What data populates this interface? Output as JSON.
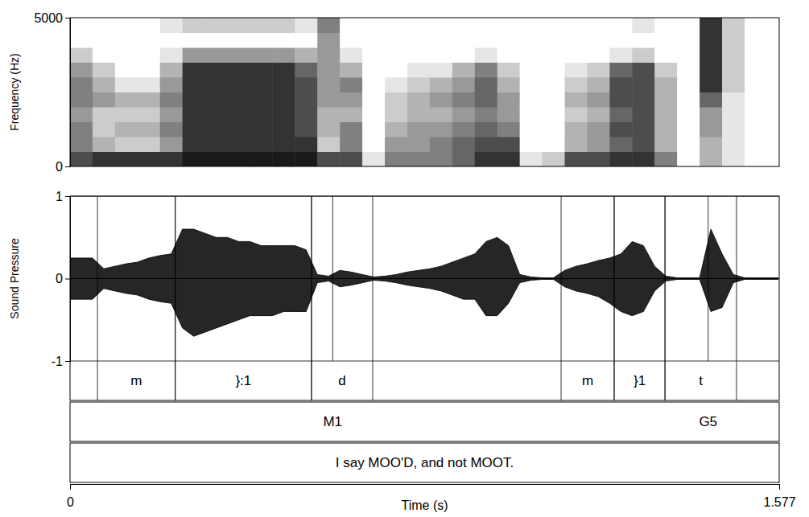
{
  "chart_data": [
    {
      "type": "heatmap",
      "ylabel": "Frequency (Hz)",
      "color": "#000000",
      "xlim": [
        0,
        1.577
      ],
      "ylim": [
        0,
        5000
      ],
      "yticks": [
        0,
        5000
      ],
      "tick_labels": "y",
      "x": [
        0,
        0.05,
        0.1,
        0.15,
        0.2,
        0.25,
        0.3,
        0.35,
        0.4,
        0.45,
        0.5,
        0.55,
        0.6,
        0.65,
        0.7,
        0.75,
        0.8,
        0.85,
        0.9,
        0.95,
        1.0,
        1.05,
        1.1,
        1.15,
        1.2,
        1.25,
        1.3,
        1.35,
        1.4,
        1.45,
        1.5,
        1.55
      ],
      "y": [
        0,
        500,
        1000,
        1500,
        2000,
        2500,
        3000,
        3500,
        4000,
        4500
      ],
      "cells": [
        [
          0.7,
          0.5,
          0.5,
          0.4,
          0.5,
          0.5,
          0.4,
          0.2,
          0,
          0
        ],
        [
          0.8,
          0.3,
          0.2,
          0.2,
          0.4,
          0.3,
          0.2,
          0,
          0,
          0
        ],
        [
          0.8,
          0.2,
          0.3,
          0.2,
          0.3,
          0.1,
          0,
          0,
          0,
          0
        ],
        [
          0.8,
          0.2,
          0.3,
          0.2,
          0.3,
          0.1,
          0,
          0,
          0,
          0
        ],
        [
          0.8,
          0.4,
          0.5,
          0.4,
          0.5,
          0.4,
          0.3,
          0.1,
          0,
          0.1
        ],
        [
          0.9,
          0.8,
          0.8,
          0.8,
          0.8,
          0.8,
          0.8,
          0.4,
          0,
          0.2
        ],
        [
          0.9,
          0.8,
          0.8,
          0.8,
          0.8,
          0.8,
          0.8,
          0.4,
          0,
          0.2
        ],
        [
          0.9,
          0.8,
          0.8,
          0.8,
          0.8,
          0.8,
          0.8,
          0.4,
          0,
          0.2
        ],
        [
          0.9,
          0.8,
          0.8,
          0.8,
          0.8,
          0.8,
          0.8,
          0.4,
          0,
          0.2
        ],
        [
          0.9,
          0.8,
          0.8,
          0.8,
          0.8,
          0.8,
          0.8,
          0.4,
          0,
          0.2
        ],
        [
          0.9,
          0.8,
          0.7,
          0.7,
          0.7,
          0.7,
          0.6,
          0.3,
          0,
          0.1
        ],
        [
          0.7,
          0.2,
          0.3,
          0.3,
          0.4,
          0.4,
          0.4,
          0.4,
          0.4,
          0.5
        ],
        [
          0.7,
          0.5,
          0.5,
          0.3,
          0.4,
          0.5,
          0.3,
          0.1,
          0,
          0
        ],
        [
          0.1,
          0,
          0,
          0,
          0,
          0,
          0,
          0,
          0,
          0
        ],
        [
          0.5,
          0.4,
          0.3,
          0.2,
          0.2,
          0.1,
          0,
          0,
          0,
          0
        ],
        [
          0.5,
          0.4,
          0.4,
          0.3,
          0.3,
          0.2,
          0.1,
          0,
          0,
          0
        ],
        [
          0.5,
          0.5,
          0.4,
          0.3,
          0.4,
          0.3,
          0.1,
          0,
          0,
          0
        ],
        [
          0.6,
          0.6,
          0.5,
          0.4,
          0.5,
          0.4,
          0.3,
          0,
          0,
          0
        ],
        [
          0.8,
          0.7,
          0.6,
          0.5,
          0.6,
          0.6,
          0.5,
          0.1,
          0,
          0
        ],
        [
          0.8,
          0.7,
          0.5,
          0.4,
          0.4,
          0.3,
          0.2,
          0,
          0,
          0
        ],
        [
          0.1,
          0,
          0,
          0,
          0,
          0,
          0,
          0,
          0,
          0
        ],
        [
          0.2,
          0,
          0,
          0,
          0,
          0,
          0,
          0,
          0,
          0
        ],
        [
          0.7,
          0.3,
          0.3,
          0.2,
          0.3,
          0.2,
          0.1,
          0,
          0,
          0
        ],
        [
          0.7,
          0.4,
          0.4,
          0.3,
          0.4,
          0.3,
          0.2,
          0,
          0,
          0
        ],
        [
          0.8,
          0.6,
          0.7,
          0.6,
          0.7,
          0.7,
          0.6,
          0.1,
          0,
          0
        ],
        [
          0.8,
          0.7,
          0.7,
          0.7,
          0.7,
          0.7,
          0.7,
          0.2,
          0,
          0.1
        ],
        [
          0.5,
          0.3,
          0.3,
          0.3,
          0.3,
          0.3,
          0.2,
          0,
          0,
          0
        ],
        [
          0,
          0,
          0,
          0,
          0,
          0,
          0,
          0,
          0,
          0
        ],
        [
          0.3,
          0.3,
          0.4,
          0.4,
          0.6,
          0.8,
          0.8,
          0.8,
          0.8,
          0.8
        ],
        [
          0.1,
          0.1,
          0.1,
          0.1,
          0.1,
          0.2,
          0.2,
          0.2,
          0.2,
          0.2
        ],
        [
          0,
          0,
          0,
          0,
          0,
          0,
          0,
          0,
          0,
          0
        ],
        [
          0,
          0,
          0,
          0,
          0,
          0,
          0,
          0,
          0,
          0
        ]
      ]
    },
    {
      "type": "area",
      "ylabel": "Sound Pressure",
      "xlabel": "Time (s)",
      "grid": true,
      "xlim": [
        0,
        1.577
      ],
      "xticks": [
        0,
        1.577
      ],
      "ylim": [
        -1,
        1
      ],
      "yticks": [
        -1,
        0,
        1
      ],
      "x": [
        0,
        0.025,
        0.05,
        0.075,
        0.1,
        0.125,
        0.15,
        0.175,
        0.2,
        0.225,
        0.25,
        0.275,
        0.3,
        0.325,
        0.35,
        0.375,
        0.4,
        0.425,
        0.45,
        0.475,
        0.5,
        0.525,
        0.55,
        0.575,
        0.6,
        0.625,
        0.65,
        0.675,
        0.7,
        0.725,
        0.75,
        0.775,
        0.8,
        0.825,
        0.85,
        0.875,
        0.9,
        0.925,
        0.95,
        0.975,
        1.0,
        1.025,
        1.05,
        1.075,
        1.1,
        1.125,
        1.15,
        1.175,
        1.2,
        1.225,
        1.25,
        1.275,
        1.3,
        1.325,
        1.35,
        1.375,
        1.4,
        1.425,
        1.45,
        1.475,
        1.5,
        1.525,
        1.55,
        1.575
      ],
      "series": [
        {
          "color": "#000000",
          "values": [
            0.25,
            0.25,
            0.25,
            0.12,
            0.15,
            0.18,
            0.2,
            0.25,
            0.28,
            0.3,
            0.6,
            0.6,
            0.55,
            0.5,
            0.5,
            0.45,
            0.45,
            0.4,
            0.4,
            0.4,
            0.4,
            0.35,
            0.05,
            0.03,
            0.1,
            0.08,
            0.05,
            0.02,
            0.03,
            0.05,
            0.08,
            0.1,
            0.12,
            0.15,
            0.2,
            0.25,
            0.3,
            0.45,
            0.5,
            0.4,
            0.05,
            0.02,
            0.01,
            0.01,
            0.1,
            0.15,
            0.18,
            0.22,
            0.25,
            0.3,
            0.45,
            0.4,
            0.15,
            0.03,
            0.01,
            0.01,
            0.01,
            0.6,
            0.3,
            0.05,
            0.01,
            0.01,
            0.01,
            0.01
          ]
        },
        {
          "color": "#000000",
          "values": [
            -0.25,
            -0.25,
            -0.25,
            -0.12,
            -0.15,
            -0.18,
            -0.2,
            -0.25,
            -0.28,
            -0.3,
            -0.6,
            -0.7,
            -0.65,
            -0.6,
            -0.55,
            -0.5,
            -0.45,
            -0.45,
            -0.45,
            -0.4,
            -0.4,
            -0.4,
            -0.05,
            -0.03,
            -0.1,
            -0.08,
            -0.05,
            -0.02,
            -0.03,
            -0.05,
            -0.08,
            -0.1,
            -0.12,
            -0.15,
            -0.2,
            -0.25,
            -0.25,
            -0.45,
            -0.45,
            -0.3,
            -0.05,
            -0.02,
            -0.01,
            -0.01,
            -0.1,
            -0.15,
            -0.18,
            -0.22,
            -0.3,
            -0.4,
            -0.45,
            -0.4,
            -0.15,
            -0.03,
            -0.01,
            -0.01,
            -0.01,
            -0.4,
            -0.35,
            -0.05,
            -0.01,
            -0.01,
            -0.01,
            -0.01
          ]
        }
      ],
      "intervals": [
        {
          "start": 0.061,
          "end": 0.234,
          "label": "m"
        },
        {
          "start": 0.234,
          "end": 0.537,
          "label": "}:1"
        },
        {
          "start": 0.537,
          "end": 0.673,
          "label": "d"
        },
        {
          "start": 1.092,
          "end": 1.21,
          "label": "m"
        },
        {
          "start": 1.21,
          "end": 1.323,
          "label": "}1"
        },
        {
          "start": 1.323,
          "end": 1.482,
          "label": "t"
        }
      ],
      "points": [
        {
          "time": 0.584,
          "label": "M1"
        },
        {
          "time": 1.419,
          "label": "G5"
        }
      ],
      "phrases": [
        {
          "start": 0,
          "end": 1.577,
          "label": "I say MOO'D, and not MOOT."
        }
      ]
    }
  ]
}
